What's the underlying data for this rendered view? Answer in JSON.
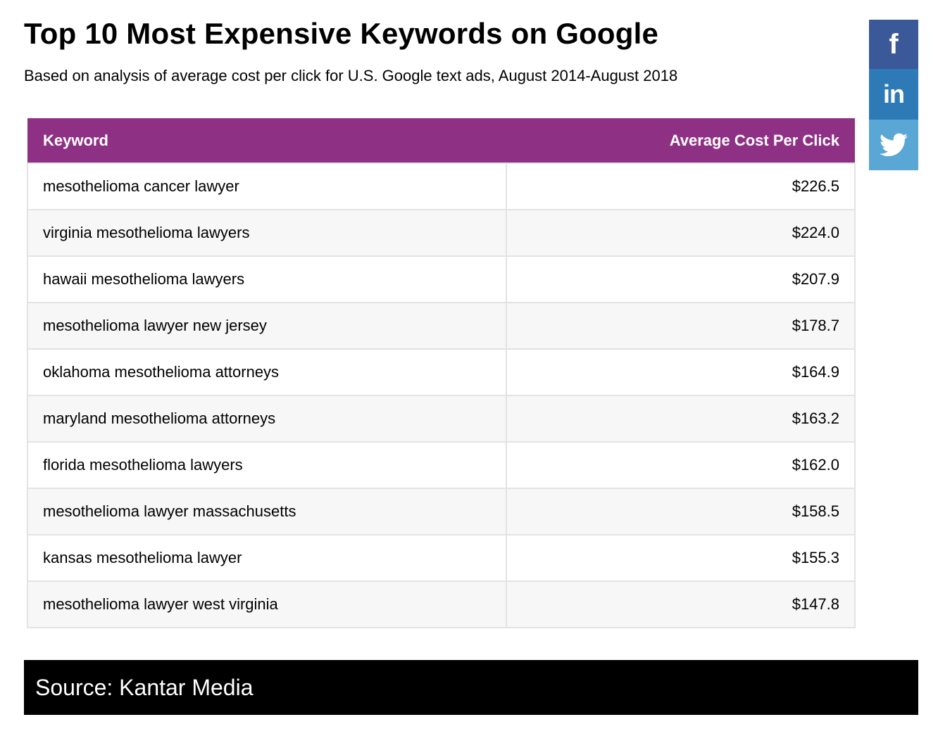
{
  "title": "Top 10 Most Expensive Keywords on Google",
  "subtitle": "Based on analysis of average cost per click for U.S. Google text ads, August 2014-August 2018",
  "colors": {
    "header_bg": "#8e3185",
    "facebook": "#3b5998",
    "linkedin": "#2d7ab6",
    "twitter": "#5aa6d4",
    "source_bg": "#000000"
  },
  "social": {
    "facebook_glyph": "f",
    "linkedin_glyph": "in",
    "icons": [
      "facebook-icon",
      "linkedin-icon",
      "twitter-icon"
    ]
  },
  "chart_data": {
    "type": "table",
    "title": "Top 10 Most Expensive Keywords on Google",
    "subtitle": "Based on analysis of average cost per click for U.S. Google text ads, August 2014-August 2018",
    "columns": [
      "Keyword",
      "Average Cost Per Click"
    ],
    "rows": [
      {
        "keyword": "mesothelioma cancer lawyer",
        "cpc": "$226.5"
      },
      {
        "keyword": "virginia mesothelioma lawyers",
        "cpc": "$224.0"
      },
      {
        "keyword": "hawaii mesothelioma lawyers",
        "cpc": "$207.9"
      },
      {
        "keyword": "mesothelioma lawyer new jersey",
        "cpc": "$178.7"
      },
      {
        "keyword": "oklahoma mesothelioma attorneys",
        "cpc": "$164.9"
      },
      {
        "keyword": "maryland mesothelioma attorneys",
        "cpc": "$163.2"
      },
      {
        "keyword": "florida mesothelioma lawyers",
        "cpc": "$162.0"
      },
      {
        "keyword": "mesothelioma lawyer massachusetts",
        "cpc": "$158.5"
      },
      {
        "keyword": "kansas mesothelioma lawyer",
        "cpc": "$155.3"
      },
      {
        "keyword": "mesothelioma lawyer west virginia",
        "cpc": "$147.8"
      }
    ],
    "values": [
      226.5,
      224.0,
      207.9,
      178.7,
      164.9,
      163.2,
      162.0,
      158.5,
      155.3,
      147.8
    ]
  },
  "source": "Source: Kantar Media"
}
